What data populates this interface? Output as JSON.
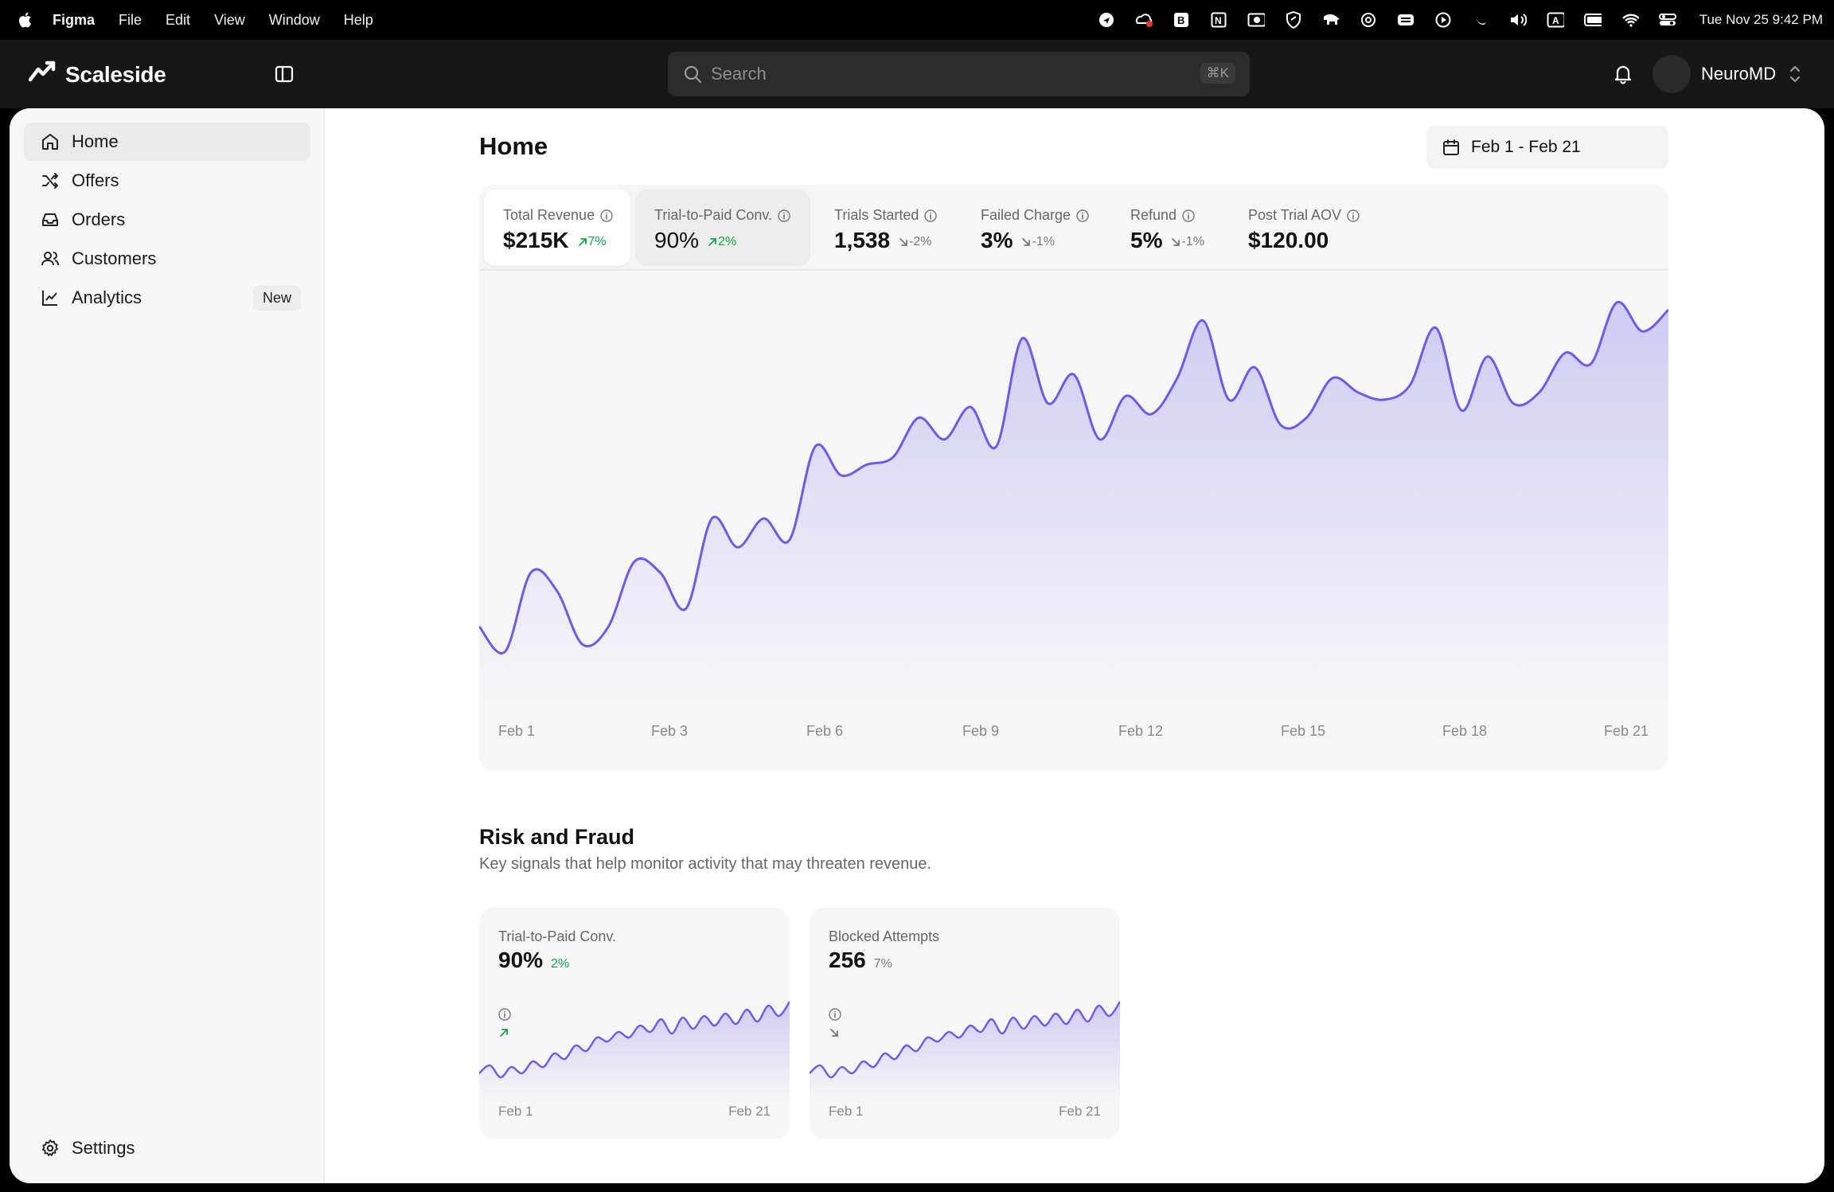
{
  "menubar": {
    "app_name": "Figma",
    "menus": [
      "File",
      "Edit",
      "View",
      "Window",
      "Help"
    ],
    "clock": "Tue Nov 25  9:42 PM",
    "status_icons": [
      "location-icon",
      "creative-cloud-icon",
      "bitwarden-icon",
      "notion-icon",
      "screen-record-icon",
      "vpn-shield-icon",
      "tableplus-elephant-icon",
      "openai-icon",
      "connect-icon",
      "play-icon",
      "do-not-disturb-moon-icon",
      "volume-icon",
      "input-source-a-icon",
      "battery-icon",
      "wifi-icon",
      "control-center-icon"
    ]
  },
  "app": {
    "brand": "Scaleside",
    "search_placeholder": "Search",
    "search_shortcut": "⌘K",
    "user": "NeuroMD"
  },
  "sidebar": {
    "items": [
      {
        "label": "Home",
        "icon": "home-icon",
        "active": true
      },
      {
        "label": "Offers",
        "icon": "shuffle-icon"
      },
      {
        "label": "Orders",
        "icon": "inbox-icon"
      },
      {
        "label": "Customers",
        "icon": "users-icon"
      },
      {
        "label": "Analytics",
        "icon": "line-chart-icon",
        "badge": "New"
      }
    ],
    "settings_label": "Settings"
  },
  "page": {
    "title": "Home",
    "date_range": "Feb 1 - Feb 21"
  },
  "metrics": [
    {
      "label": "Total Revenue",
      "value": "$215K",
      "delta": "7%",
      "direction": "up"
    },
    {
      "label": "Trial-to-Paid Conv.",
      "value": "90%",
      "delta": "2%",
      "direction": "up"
    },
    {
      "label": "Trials Started",
      "value": "1,538",
      "delta": "-2%",
      "direction": "down"
    },
    {
      "label": "Failed Charge",
      "value": "3%",
      "delta": "-1%",
      "direction": "down"
    },
    {
      "label": "Refund",
      "value": "5%",
      "delta": "-1%",
      "direction": "down"
    },
    {
      "label": "Post Trial AOV",
      "value": "$120.00",
      "delta": "",
      "direction": ""
    }
  ],
  "chart_data": [
    {
      "type": "area",
      "title": "",
      "xlabel": "",
      "ylabel": "",
      "x_ticks": [
        "Feb 1",
        "Feb 3",
        "Feb 6",
        "Feb 9",
        "Feb 12",
        "Feb 15",
        "Feb 18",
        "Feb 21"
      ],
      "y_axis_visible": false,
      "grid": false,
      "color": "#6b5ce7",
      "series": [
        {
          "values": [
            0.1,
            0.03,
            0.25,
            0.2,
            0.05,
            0.1,
            0.28,
            0.25,
            0.15,
            0.4,
            0.32,
            0.4,
            0.34,
            0.6,
            0.52,
            0.55,
            0.57,
            0.68,
            0.62,
            0.71,
            0.6,
            0.9,
            0.72,
            0.8,
            0.62,
            0.74,
            0.69,
            0.79,
            0.95,
            0.73,
            0.82,
            0.66,
            0.68,
            0.79,
            0.75,
            0.73,
            0.77,
            0.93,
            0.7,
            0.85,
            0.72,
            0.75,
            0.86,
            0.83,
            1.0,
            0.92,
            0.98
          ]
        }
      ]
    },
    {
      "type": "area",
      "title": "Trial-to-Paid Conv.",
      "x_ticks": [
        "Feb 1",
        "Feb 21"
      ],
      "color": "#6b5ce7",
      "series": [
        {
          "values": [
            0.1,
            0.2,
            0.05,
            0.18,
            0.1,
            0.25,
            0.18,
            0.35,
            0.28,
            0.45,
            0.38,
            0.55,
            0.5,
            0.62,
            0.55,
            0.7,
            0.62,
            0.78,
            0.6,
            0.8,
            0.66,
            0.82,
            0.7,
            0.85,
            0.72,
            0.9,
            0.75,
            0.95,
            0.82,
            1.0
          ]
        }
      ]
    },
    {
      "type": "area",
      "title": "Blocked Attempts",
      "x_ticks": [
        "Feb 1",
        "Feb 21"
      ],
      "color": "#6b5ce7",
      "series": [
        {
          "values": [
            0.1,
            0.2,
            0.05,
            0.18,
            0.1,
            0.25,
            0.18,
            0.35,
            0.28,
            0.45,
            0.38,
            0.55,
            0.5,
            0.62,
            0.55,
            0.7,
            0.62,
            0.78,
            0.6,
            0.8,
            0.66,
            0.82,
            0.7,
            0.85,
            0.72,
            0.9,
            0.75,
            0.95,
            0.82,
            1.0
          ]
        }
      ]
    }
  ],
  "risk": {
    "title": "Risk and Fraud",
    "subtitle": "Key signals that help monitor activity that may threaten revenue.",
    "cards": [
      {
        "label": "Trial-to-Paid Conv.",
        "value": "90%",
        "delta": "2%",
        "direction": "up",
        "start": "Feb 1",
        "end": "Feb 21"
      },
      {
        "label": "Blocked Attempts",
        "value": "256",
        "delta": "7%",
        "direction": "down",
        "start": "Feb 1",
        "end": "Feb 21"
      }
    ]
  }
}
